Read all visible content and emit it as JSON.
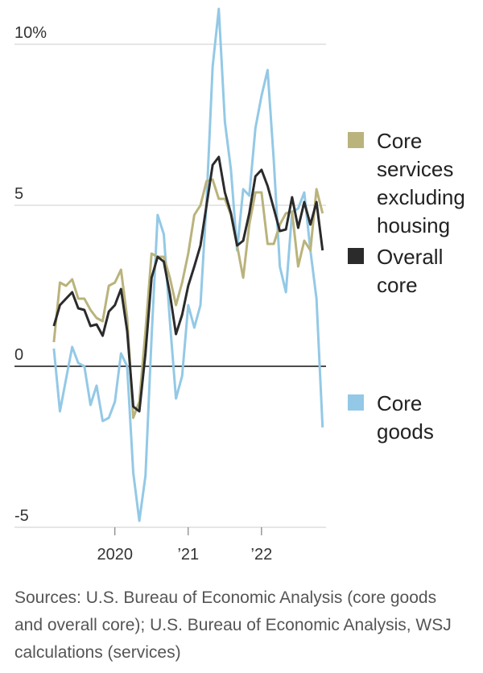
{
  "chart_data": {
    "type": "line",
    "x": [
      2019.167,
      2019.25,
      2019.333,
      2019.417,
      2019.5,
      2019.583,
      2019.667,
      2019.75,
      2019.833,
      2019.917,
      2020,
      2020.083,
      2020.167,
      2020.25,
      2020.333,
      2020.417,
      2020.5,
      2020.583,
      2020.667,
      2020.75,
      2020.833,
      2020.917,
      2021,
      2021.083,
      2021.167,
      2021.25,
      2021.333,
      2021.417,
      2021.5,
      2021.583,
      2021.667,
      2021.75,
      2021.833,
      2021.917,
      2022,
      2022.083,
      2022.167,
      2022.25,
      2022.333,
      2022.417,
      2022.5,
      2022.583,
      2022.667,
      2022.75,
      2022.833
    ],
    "series": [
      {
        "name": "Core services excluding housing",
        "color": "#bab37c",
        "values": [
          0.75,
          2.6,
          2.5,
          2.7,
          2.1,
          2.1,
          1.75,
          1.5,
          1.4,
          2.5,
          2.6,
          3.0,
          1.5,
          -1.6,
          -1.1,
          1.1,
          3.5,
          3.4,
          3.4,
          2.75,
          1.9,
          2.6,
          3.5,
          4.7,
          5.0,
          5.75,
          5.8,
          5.2,
          5.2,
          4.7,
          3.75,
          2.75,
          4.4,
          5.4,
          5.4,
          3.8,
          3.8,
          4.4,
          4.75,
          4.8,
          3.1,
          3.9,
          3.6,
          5.5,
          4.75
        ]
      },
      {
        "name": "Overall core",
        "color": "#2b2b2b",
        "values": [
          1.25,
          1.9,
          2.1,
          2.3,
          1.8,
          1.75,
          1.25,
          1.3,
          0.95,
          1.7,
          1.9,
          2.4,
          1.1,
          -1.25,
          -1.4,
          0.4,
          2.75,
          3.4,
          3.25,
          2.25,
          1.0,
          1.6,
          2.5,
          3.1,
          3.75,
          5.0,
          6.25,
          6.5,
          5.4,
          4.75,
          3.75,
          3.9,
          4.75,
          5.9,
          6.1,
          5.6,
          4.9,
          4.2,
          4.25,
          5.25,
          4.3,
          5.1,
          4.4,
          5.1,
          3.6
        ]
      },
      {
        "name": "Core goods",
        "color": "#93c9e6",
        "values": [
          0.55,
          -1.4,
          -0.4,
          0.6,
          0.1,
          0.0,
          -1.2,
          -0.6,
          -1.7,
          -1.6,
          -1.1,
          0.4,
          0.0,
          -3.3,
          -4.8,
          -3.4,
          0.9,
          4.7,
          4.1,
          1.4,
          -1.0,
          -0.3,
          1.9,
          1.2,
          1.9,
          5.1,
          9.3,
          11.1,
          7.6,
          6.1,
          3.6,
          5.5,
          5.3,
          7.4,
          8.4,
          9.2,
          6.4,
          3.1,
          2.3,
          4.8,
          4.9,
          5.4,
          3.6,
          2.1,
          -1.9
        ]
      }
    ],
    "xlim": [
      2018.63,
      2022.88
    ],
    "xticks": [
      {
        "value": 2020,
        "label": "2020"
      },
      {
        "value": 2021,
        "label": "’21"
      },
      {
        "value": 2022,
        "label": "’22"
      }
    ],
    "ylim": [
      -5,
      11.2
    ],
    "yticks": [
      -5,
      0,
      5,
      {
        "value": 10,
        "label": "10%"
      }
    ],
    "grid": true,
    "legend": "right",
    "source": "Sources: U.S. Bureau of Economic Analysis (core goods and overall core); U.S. Bureau of Economic Analysis, WSJ calculations (services)"
  }
}
